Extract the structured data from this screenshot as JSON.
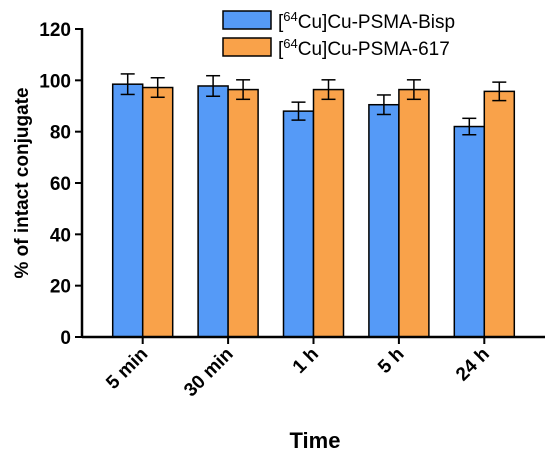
{
  "chart_data": {
    "type": "bar",
    "xlabel": "Time",
    "ylabel": "% of intact conjugate",
    "categories": [
      "5 min",
      "30 min",
      "1 h",
      "5 h",
      "24 h"
    ],
    "ylim": [
      0,
      120
    ],
    "yticks": [
      0,
      20,
      40,
      60,
      80,
      100,
      120
    ],
    "legend_position": "top-right",
    "grid": false,
    "series": [
      {
        "name_prefix": "[",
        "name_superscript": "64",
        "name_suffix": "Cu]Cu-PSMA-Bisp",
        "color": "#559af7",
        "values": [
          98.5,
          97.8,
          88.0,
          90.5,
          82.0
        ],
        "errors": [
          4.0,
          4.0,
          3.5,
          3.8,
          3.2
        ]
      },
      {
        "name_prefix": "[",
        "name_superscript": "64",
        "name_suffix": "Cu]Cu-PSMA-617",
        "color": "#f9a24a",
        "values": [
          97.2,
          96.4,
          96.4,
          96.4,
          95.7
        ],
        "errors": [
          3.8,
          3.8,
          3.8,
          3.8,
          3.6
        ]
      }
    ]
  }
}
